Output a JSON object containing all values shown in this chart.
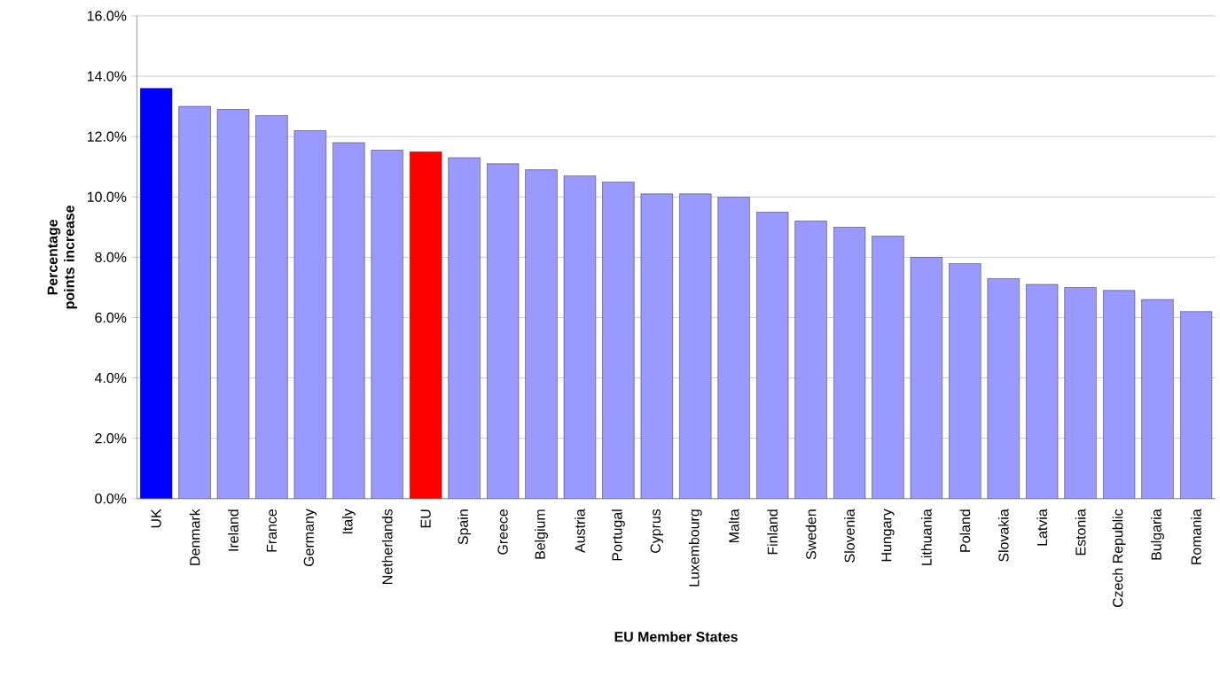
{
  "chart_data": {
    "type": "bar",
    "xlabel": "EU Member States",
    "ylabel": "Percentage points increase",
    "categories": [
      "UK",
      "Denmark",
      "Ireland",
      "France",
      "Germany",
      "Italy",
      "Netherlands",
      "EU",
      "Spain",
      "Greece",
      "Belgium",
      "Austria",
      "Portugal",
      "Cyprus",
      "Luxembourg",
      "Malta",
      "Finland",
      "Sweden",
      "Slovenia",
      "Hungary",
      "Lithuania",
      "Poland",
      "Slovakia",
      "Latvia",
      "Estonia",
      "Czech Republic",
      "Bulgaria",
      "Romania"
    ],
    "values": [
      13.6,
      13.0,
      12.9,
      12.7,
      12.2,
      11.8,
      11.55,
      11.5,
      11.3,
      11.1,
      10.9,
      10.7,
      10.5,
      10.1,
      10.1,
      10.0,
      9.5,
      9.2,
      9.0,
      8.7,
      8.0,
      7.8,
      7.3,
      7.1,
      7.0,
      6.9,
      6.6,
      6.2
    ],
    "colors": [
      "#0000ff",
      "#9999ff",
      "#9999ff",
      "#9999ff",
      "#9999ff",
      "#9999ff",
      "#9999ff",
      "#ff0000",
      "#9999ff",
      "#9999ff",
      "#9999ff",
      "#9999ff",
      "#9999ff",
      "#9999ff",
      "#9999ff",
      "#9999ff",
      "#9999ff",
      "#9999ff",
      "#9999ff",
      "#9999ff",
      "#9999ff",
      "#9999ff",
      "#9999ff",
      "#9999ff",
      "#9999ff",
      "#9999ff",
      "#9999ff",
      "#9999ff"
    ],
    "ylim": [
      0,
      16
    ],
    "yticks": [
      {
        "value": 0,
        "label": "0.0%"
      },
      {
        "value": 2,
        "label": "2.0%"
      },
      {
        "value": 4,
        "label": "4.0%"
      },
      {
        "value": 6,
        "label": "6.0%"
      },
      {
        "value": 8,
        "label": "8.0%"
      },
      {
        "value": 10,
        "label": "10.0%"
      },
      {
        "value": 12,
        "label": "12.0%"
      },
      {
        "value": 14,
        "label": "14.0%"
      },
      {
        "value": 16,
        "label": "16.0%"
      }
    ],
    "grid": "y"
  }
}
